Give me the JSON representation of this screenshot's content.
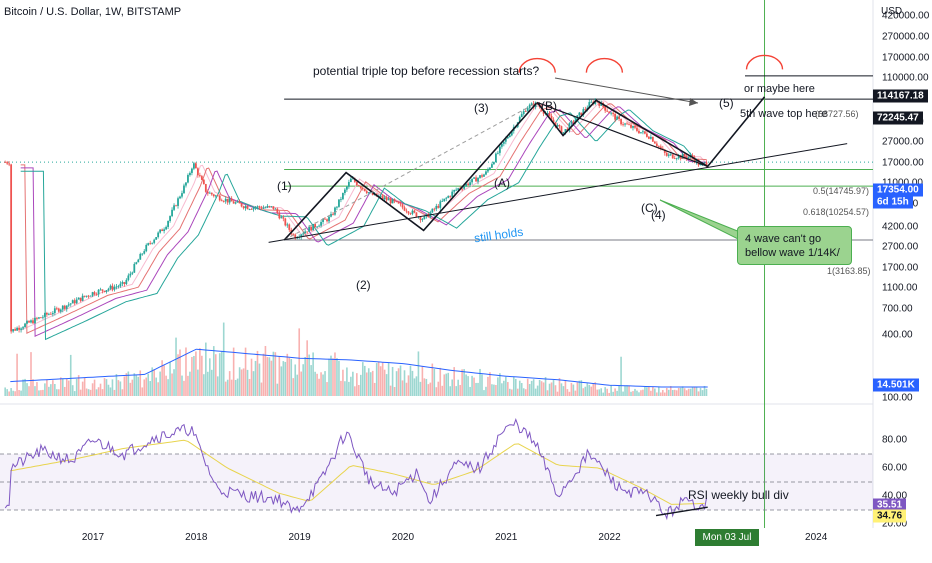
{
  "header": {
    "title": "Bitcoin / U.S. Dollar, 1W, BITSTAMP",
    "currency": "USD"
  },
  "price_axis": {
    "ticks": [
      "420000.00",
      "270000.00",
      "170000.00",
      "110000.00",
      "72000.00",
      "42000.00",
      "27000.00",
      "17000.00",
      "11000.00",
      "7000.00",
      "4200.00",
      "2700.00",
      "1700.00",
      "1100.00",
      "700.00",
      "400.00",
      "100.00"
    ],
    "tags": [
      {
        "label": "114167.18",
        "color": "#131722",
        "text_color": "#ffffff"
      },
      {
        "label": "72245.47",
        "color": "#131722",
        "text_color": "#ffffff"
      },
      {
        "label": "17354.00",
        "color": "#2962ff",
        "text_color": "#ffffff"
      },
      {
        "label": "6d 15h",
        "color": "#2962ff",
        "text_color": "#ffffff"
      },
      {
        "label": "14.501K",
        "color": "#2962ff",
        "text_color": "#ffffff"
      }
    ]
  },
  "rsi_axis": {
    "ticks": [
      "80.00",
      "60.00",
      "40.00",
      "20.00"
    ],
    "tags": [
      {
        "label": "35.51",
        "color": "#7e57c2",
        "text_color": "#ffffff"
      },
      {
        "label": "34.76",
        "color": "#fff176",
        "text_color": "#131722"
      }
    ]
  },
  "time_axis": {
    "ticks": [
      "2017",
      "2018",
      "2019",
      "2020",
      "2021",
      "2022",
      "2023",
      "2024"
    ],
    "cursor_label": "Mon 03 Jul '23"
  },
  "annotations": {
    "title_note": "potential triple top before recession starts?",
    "maybe_here": "or maybe here",
    "fifth_wave": "5th wave top here",
    "still_holds": "still holds",
    "rsi_note": "RSI weekly bull div",
    "callout_line1": "4 wave can't go",
    "callout_line2": "bellow wave 1/14K/",
    "w1": "(1)",
    "w2": "(2)",
    "w3": "(3)",
    "w4": "(4)",
    "w5": "(5)",
    "wA": "(A)",
    "wB": "(B)",
    "wC": "(C)",
    "fib_top": "(68727.56)",
    "fib_05": "0.5(14745.97)",
    "fib_0618": "0.618(10254.57)",
    "fib_1": "1(3163.85)"
  },
  "colors": {
    "candle_up": "#26a69a",
    "candle_down": "#ef5350",
    "volume_ma": "#2962ff",
    "rsi_line": "#7e57c2",
    "rsi_ma": "#e8d44d",
    "fib_line": "#4caf50",
    "cursor_line": "#4caf50",
    "wave_line": "#131722",
    "top_arc": "#f44336"
  },
  "chart_data": {
    "type": "line",
    "series": [
      {
        "name": "",
        "values": [
          [
            2016.2,
            430
          ],
          [
            2016.6,
            650
          ],
          [
            2017.0,
            1000
          ],
          [
            2017.3,
            1200
          ],
          [
            2017.5,
            2600
          ],
          [
            2017.7,
            4300
          ],
          [
            2017.9,
            11000
          ],
          [
            2017.97,
            17000
          ],
          [
            2018.1,
            9000
          ],
          [
            2018.3,
            7500
          ],
          [
            2018.5,
            6500
          ],
          [
            2018.75,
            6400
          ],
          [
            2018.95,
            3400
          ],
          [
            2019.3,
            5200
          ],
          [
            2019.5,
            12000
          ],
          [
            2019.7,
            8500
          ],
          [
            2019.9,
            7300
          ],
          [
            2020.2,
            5000
          ],
          [
            2020.5,
            9300
          ],
          [
            2020.8,
            13500
          ],
          [
            2021.0,
            29000
          ],
          [
            2021.2,
            58000
          ],
          [
            2021.3,
            62000
          ],
          [
            2021.55,
            33000
          ],
          [
            2021.8,
            61000
          ],
          [
            2021.87,
            67000
          ],
          [
            2022.1,
            42000
          ],
          [
            2022.4,
            30000
          ],
          [
            2022.55,
            20000
          ],
          [
            2022.8,
            19500
          ],
          [
            2022.88,
            16000
          ],
          [
            2022.95,
            17354
          ]
        ]
      }
    ],
    "volume_ma": [
      [
        2016.2,
        0.8
      ],
      [
        2017.5,
        1.2
      ],
      [
        2018.0,
        2.6
      ],
      [
        2018.6,
        2.3
      ],
      [
        2019.0,
        2.1
      ],
      [
        2019.5,
        2.0
      ],
      [
        2020.0,
        1.8
      ],
      [
        2020.5,
        1.4
      ],
      [
        2021.0,
        1.1
      ],
      [
        2021.5,
        0.9
      ],
      [
        2022.0,
        0.6
      ],
      [
        2022.5,
        0.5
      ],
      [
        2022.95,
        0.5
      ]
    ],
    "rsi": [
      [
        2016.2,
        60
      ],
      [
        2016.5,
        72
      ],
      [
        2016.8,
        65
      ],
      [
        2017.0,
        80
      ],
      [
        2017.3,
        70
      ],
      [
        2017.6,
        82
      ],
      [
        2017.95,
        88
      ],
      [
        2018.2,
        45
      ],
      [
        2018.5,
        40
      ],
      [
        2018.8,
        38
      ],
      [
        2018.95,
        28
      ],
      [
        2019.2,
        50
      ],
      [
        2019.45,
        86
      ],
      [
        2019.7,
        48
      ],
      [
        2019.9,
        42
      ],
      [
        2020.15,
        58
      ],
      [
        2020.25,
        35
      ],
      [
        2020.5,
        62
      ],
      [
        2020.75,
        60
      ],
      [
        2020.95,
        85
      ],
      [
        2021.1,
        92
      ],
      [
        2021.3,
        75
      ],
      [
        2021.5,
        40
      ],
      [
        2021.8,
        70
      ],
      [
        2021.9,
        62
      ],
      [
        2022.1,
        45
      ],
      [
        2022.4,
        40
      ],
      [
        2022.55,
        26
      ],
      [
        2022.7,
        36
      ],
      [
        2022.85,
        34
      ],
      [
        2022.95,
        35.51
      ]
    ],
    "rsi_ma": [
      [
        2016.2,
        58
      ],
      [
        2016.8,
        66
      ],
      [
        2017.3,
        74
      ],
      [
        2017.9,
        80
      ],
      [
        2018.3,
        60
      ],
      [
        2018.8,
        42
      ],
      [
        2019.1,
        36
      ],
      [
        2019.5,
        62
      ],
      [
        2019.9,
        56
      ],
      [
        2020.3,
        48
      ],
      [
        2020.7,
        58
      ],
      [
        2021.1,
        78
      ],
      [
        2021.5,
        62
      ],
      [
        2021.9,
        60
      ],
      [
        2022.3,
        46
      ],
      [
        2022.6,
        34
      ],
      [
        2022.95,
        34.76
      ]
    ],
    "xlim": [
      2016.1,
      2024.55
    ],
    "ylim": [
      100,
      600000
    ],
    "log_scale": true,
    "rsi_ylim": [
      20,
      100
    ],
    "grid": false,
    "legend": "none"
  }
}
